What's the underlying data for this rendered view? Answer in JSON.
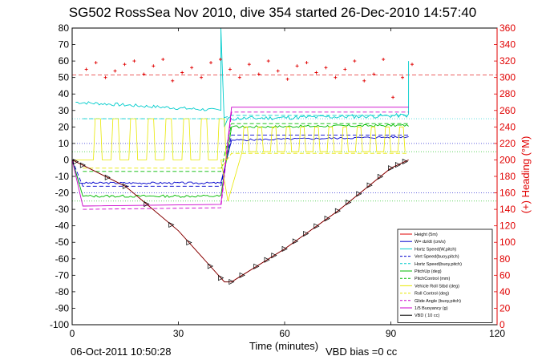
{
  "chart_data": {
    "type": "line",
    "title": "SG502 RossSea Nov 2010, dive 354 started 26-Dec-2010 14:57:40",
    "xlabel": "Time (minutes)",
    "ylabel_right": "(+) Heading (°M)",
    "xlim": [
      0,
      120
    ],
    "ylim": [
      -100,
      80
    ],
    "ylim_right": [
      0,
      360
    ],
    "x_ticks": [
      "0",
      "30",
      "60",
      "90",
      "120"
    ],
    "y_ticks": [
      "80",
      "70",
      "60",
      "50",
      "40",
      "30",
      "20",
      "10",
      "0",
      "-10",
      "-20",
      "-30",
      "-40",
      "-50",
      "-60",
      "-70",
      "-80",
      "-90",
      "-100"
    ],
    "y_right_ticks": [
      "360",
      "340",
      "320",
      "300",
      "280",
      "260",
      "240",
      "220",
      "200",
      "180",
      "160",
      "140",
      "120",
      "100",
      "80",
      "60",
      "40",
      "20",
      "0"
    ],
    "footer_left": "06-Oct-2011 10:50:28",
    "footer_right": "VBD bias =0 cc",
    "legend_position": "bottom-right",
    "series": [
      {
        "name": "Height (5m)",
        "color": "#e00000",
        "style": "solid"
      },
      {
        "name": "W= dz/dt (cm/s)",
        "color": "#0000cc",
        "style": "solid"
      },
      {
        "name": "Hortz Speed(W,pitch)",
        "color": "#00cccc",
        "style": "solid"
      },
      {
        "name": "Vert Speed(buoy,pitch)",
        "color": "#0000cc",
        "style": "dashed"
      },
      {
        "name": "Hortz Speed(buoy,pitch)",
        "color": "#00cccc",
        "style": "dashed"
      },
      {
        "name": "PitchUp (deg)",
        "color": "#00bb00",
        "style": "solid"
      },
      {
        "name": "PitchControl (mm)",
        "color": "#00bb00",
        "style": "dashed"
      },
      {
        "name": "Vehicle Roll Stbd (deg)",
        "color": "#e8e800",
        "style": "solid"
      },
      {
        "name": "Roll Control (deg)",
        "color": "#e8e800",
        "style": "dashed"
      },
      {
        "name": "Glide Angle (buoy,pitch)",
        "color": "#cc00cc",
        "style": "dashed"
      },
      {
        "name": "1/5 Buoyancy (g)",
        "color": "#cc00cc",
        "style": "solid"
      },
      {
        "name": "VBD ( 10 cc)",
        "color": "#000000",
        "style": "solid"
      }
    ],
    "depth_profile": {
      "x": [
        0,
        15,
        30,
        43,
        45,
        60,
        75,
        90,
        95
      ],
      "y": [
        0,
        -16,
        -43,
        -74,
        -74,
        -54,
        -31,
        -5,
        0
      ],
      "markers_x": [
        1,
        3,
        10,
        15,
        21,
        28,
        33,
        39,
        42,
        45,
        48,
        52,
        55,
        57,
        60,
        63,
        66,
        69,
        72,
        75,
        78,
        81,
        84,
        87,
        90,
        92,
        94
      ]
    },
    "heading_markers": {
      "y_right": [
        310,
        318,
        300,
        308,
        316,
        320,
        304,
        314,
        322,
        296,
        306,
        312,
        300,
        318,
        322,
        310,
        300,
        316,
        304,
        320,
        308,
        298,
        314,
        318,
        306,
        312,
        300,
        310,
        320,
        296,
        304,
        322,
        276,
        300,
        316
      ],
      "x_range": [
        4,
        96
      ]
    },
    "heading_reference_right": 303
  }
}
